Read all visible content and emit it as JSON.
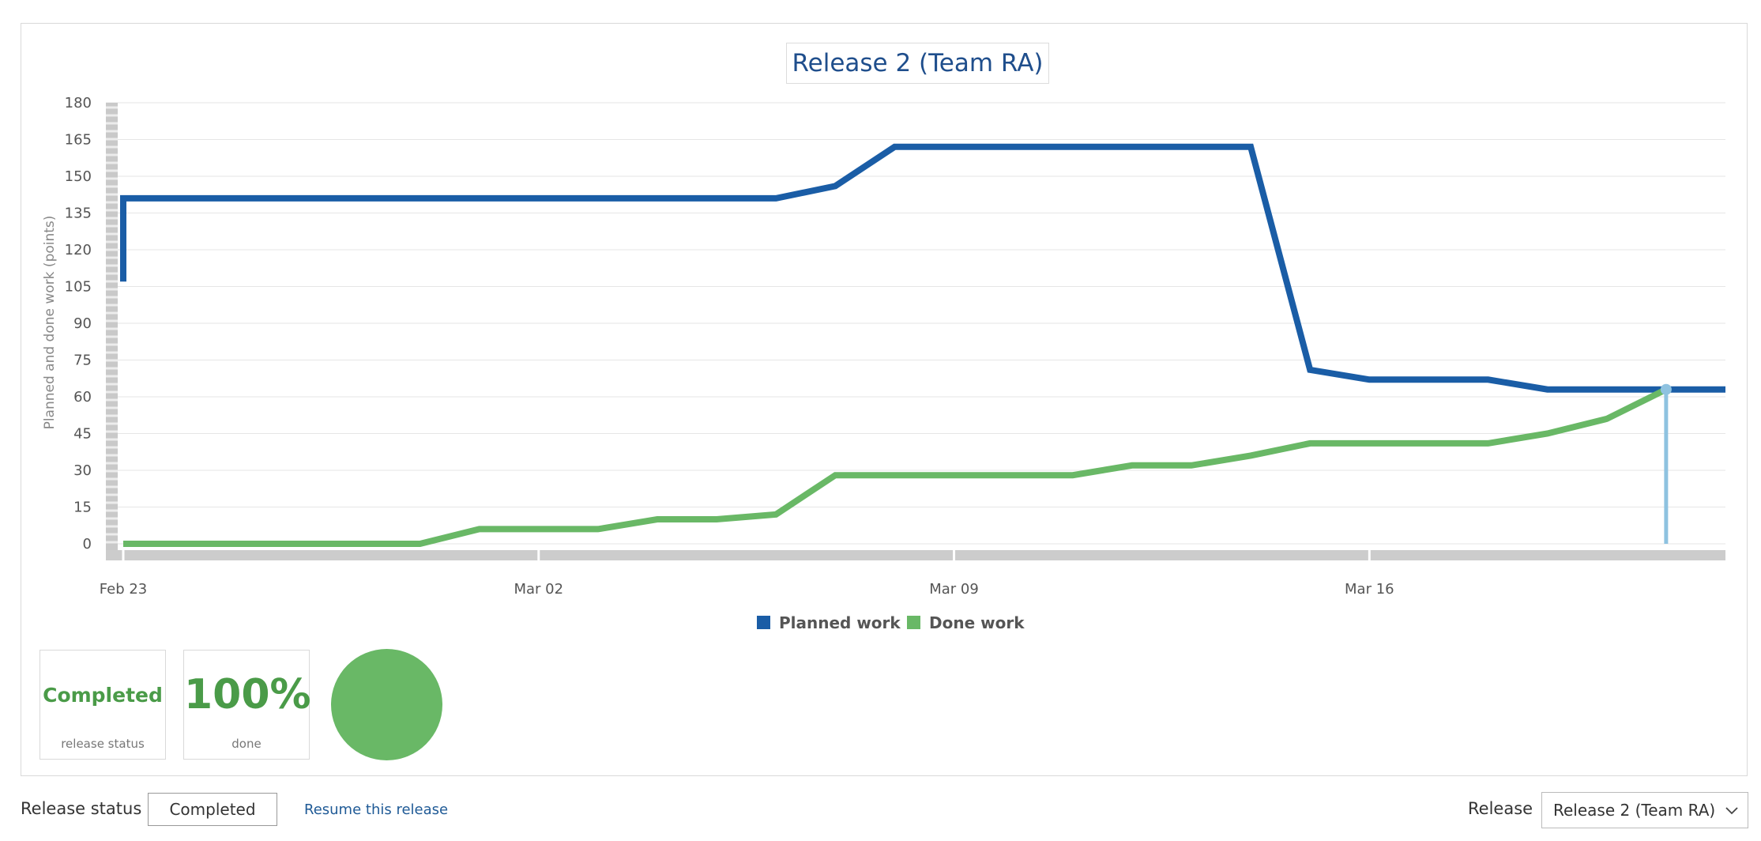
{
  "chart_data": {
    "type": "line",
    "title": "Release 2 (Team RA)",
    "ylabel": "Planned and done work (points)",
    "xlabel": "",
    "ylim": [
      0,
      180
    ],
    "yticks": [
      0,
      15,
      30,
      45,
      60,
      75,
      90,
      105,
      120,
      135,
      150,
      165,
      180
    ],
    "xlim": [
      "2015-02-23",
      "2015-03-22"
    ],
    "xticks": [
      {
        "date": "2015-02-23",
        "label": "Feb 23"
      },
      {
        "date": "2015-03-02",
        "label": "Mar 02"
      },
      {
        "date": "2015-03-09",
        "label": "Mar 09"
      },
      {
        "date": "2015-03-16",
        "label": "Mar 16"
      }
    ],
    "grid": true,
    "legend_position": "bottom",
    "series": [
      {
        "name": "Planned work",
        "color": "#1a5da6",
        "points": [
          [
            "2015-02-23",
            107
          ],
          [
            "2015-02-23",
            141
          ],
          [
            "2015-03-06",
            141
          ],
          [
            "2015-03-07",
            146
          ],
          [
            "2015-03-08",
            162
          ],
          [
            "2015-03-14",
            162
          ],
          [
            "2015-03-15",
            71
          ],
          [
            "2015-03-16",
            67
          ],
          [
            "2015-03-18",
            67
          ],
          [
            "2015-03-19",
            63
          ],
          [
            "2015-03-22",
            63
          ]
        ]
      },
      {
        "name": "Done work",
        "color": "#69b866",
        "points": [
          [
            "2015-02-23",
            0
          ],
          [
            "2015-02-28",
            0
          ],
          [
            "2015-03-01",
            6
          ],
          [
            "2015-03-03",
            6
          ],
          [
            "2015-03-04",
            10
          ],
          [
            "2015-03-05",
            10
          ],
          [
            "2015-03-06",
            12
          ],
          [
            "2015-03-07",
            28
          ],
          [
            "2015-03-11",
            28
          ],
          [
            "2015-03-12",
            32
          ],
          [
            "2015-03-13",
            32
          ],
          [
            "2015-03-14",
            36
          ],
          [
            "2015-03-15",
            41
          ],
          [
            "2015-03-18",
            41
          ],
          [
            "2015-03-19",
            45
          ],
          [
            "2015-03-20",
            51
          ],
          [
            "2015-03-21",
            63
          ]
        ]
      }
    ],
    "current_marker": {
      "date": "2015-03-21",
      "value": 63,
      "color": "#8ec2e0"
    }
  },
  "stats": {
    "status_value": "Completed",
    "status_caption": "release status",
    "done_value": "100%",
    "done_caption": "done",
    "done_fraction": 1.0,
    "accent_color": "#69b866"
  },
  "footer": {
    "release_status_label": "Release status",
    "release_status_value": "Completed",
    "resume_link": "Resume this release",
    "release_label": "Release",
    "release_selected": "Release 2 (Team RA)"
  },
  "icons": {
    "dropdown": "chevron-down-icon"
  }
}
